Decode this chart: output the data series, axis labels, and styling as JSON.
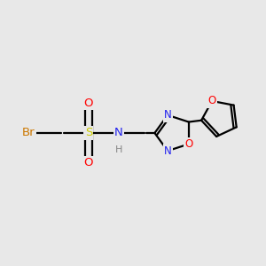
{
  "background_color": "#e8e8e8",
  "line_color": "#000000",
  "line_width": 1.6,
  "figsize": [
    3.0,
    3.0
  ],
  "dpi": 100,
  "xlim": [
    0,
    10
  ],
  "ylim": [
    0,
    10
  ],
  "Br_color": "#cc7700",
  "S_color": "#cccc00",
  "O_color": "#ff0000",
  "N_color": "#2222ee",
  "H_color": "#888888",
  "C_color": "#000000"
}
